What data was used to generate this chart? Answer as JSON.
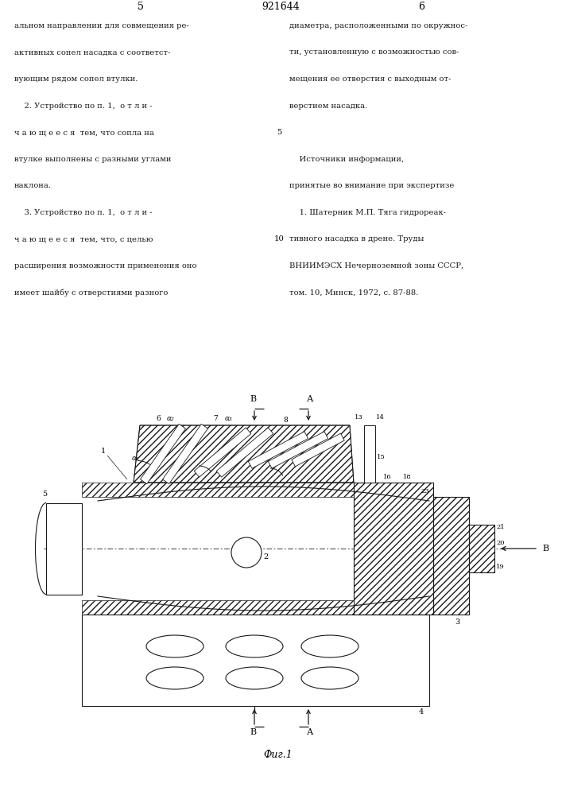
{
  "page_width": 7.07,
  "page_height": 10.0,
  "bg_color": "#ffffff",
  "line_color": "#1a1a1a",
  "text_color": "#1a1a1a",
  "page_num_left": "5",
  "page_num_center": "921644",
  "page_num_right": "6",
  "left_col_lines": [
    "альном направлении для совмещения ре-",
    "активных сопел насадка с соответст-",
    "вующим рядом сопел втулки.",
    "    2. Устройство по п. 1,  о т л и -",
    "ч а ю щ е е с я  тем, что сопла на",
    "втулке выполнены с разными углами",
    "наклона.",
    "    3. Устройство по п. 1,  о т л и -",
    "ч а ю щ е е с я  тем, что, с целью",
    "расширения возможности применения оно",
    "имеет шайбу с отверстиями разного"
  ],
  "right_col_lines": [
    "диаметра, расположенными по окружнос-",
    "ти, установленную с возможностью сов-",
    "мещения ее отверстия с выходным от-",
    "верстием насадка.",
    "",
    "    Источники информации,",
    "принятые во внимание при экспертизе",
    "    1. Шатерник М.П. Тяга гидрореак-",
    "тивного насадка в дрене. Труды",
    "ВНИИМЭСХ Нечерноземной зоны СССР,",
    "том. 10, Минск, 1972, с. 87-88."
  ],
  "margin_number_5": "5",
  "margin_number_10": "10",
  "fig_caption": "Фиг.1"
}
